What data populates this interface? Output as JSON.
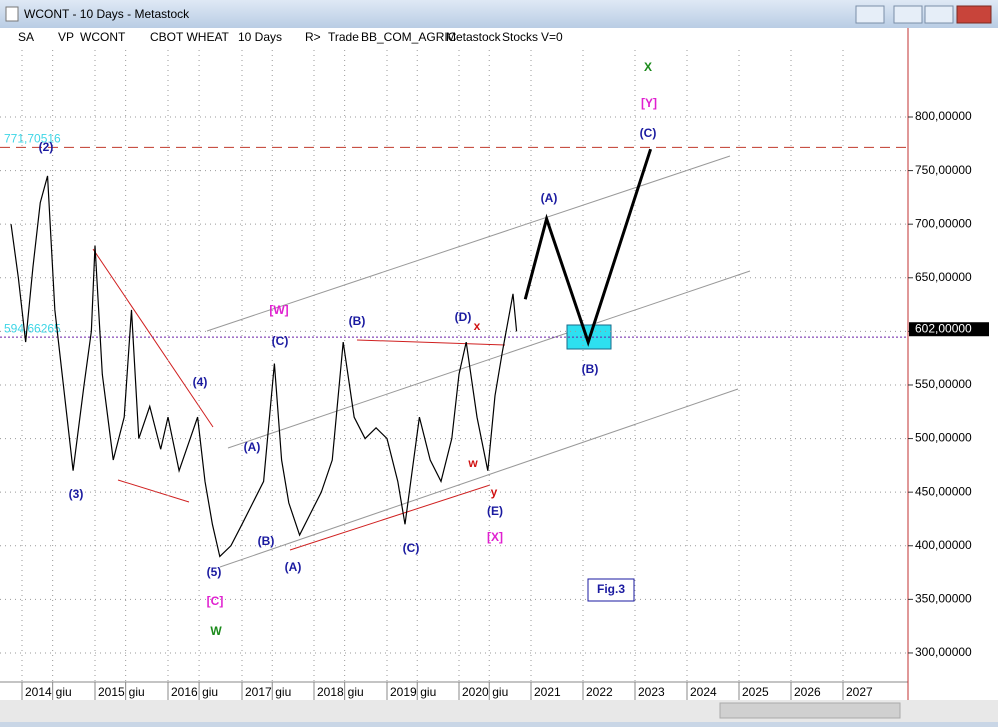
{
  "window": {
    "title": "WCONT - 10 Days - Metastock"
  },
  "toolbar": {
    "items": [
      "SA",
      "VP",
      "WCONT",
      "CBOT WHEAT",
      "10 Days",
      "R>",
      "Trade",
      "BB_COM_AGRIC",
      "Metastock",
      "Stocks",
      "V=0"
    ]
  },
  "chart_data": {
    "type": "line",
    "xlim": [
      2013.7,
      2028.25
    ],
    "ylim": [
      272.9,
      862.5
    ],
    "grid": true,
    "xticks": [
      2014,
      {
        "value": 2014.42,
        "label": "giu"
      },
      2015,
      {
        "value": 2015.42,
        "label": "giu"
      },
      2016,
      {
        "value": 2016.42,
        "label": "giu"
      },
      2017,
      {
        "value": 2017.42,
        "label": "giu"
      },
      2018,
      {
        "value": 2018.42,
        "label": "giu"
      },
      2019,
      {
        "value": 2019.42,
        "label": "giu"
      },
      2020,
      {
        "value": 2020.42,
        "label": "giu"
      },
      2021,
      2022,
      2023,
      2024,
      2025,
      2026,
      2027
    ],
    "yticks": [
      {
        "value": 300,
        "label": "300,00000"
      },
      {
        "value": 350,
        "label": "350,00000"
      },
      {
        "value": 400,
        "label": "400,00000"
      },
      {
        "value": 450,
        "label": "450,00000"
      },
      {
        "value": 500,
        "label": "500,00000"
      },
      {
        "value": 550,
        "label": "550,00000"
      },
      {
        "value": 600,
        "label": "600,00000"
      },
      {
        "value": 650,
        "label": "650,00000"
      },
      {
        "value": 700,
        "label": "700,00000"
      },
      {
        "value": 750,
        "label": "750,00000"
      },
      {
        "value": 800,
        "label": "800,00000"
      }
    ],
    "last_price": {
      "value": 602,
      "label": "602,00000"
    },
    "hlines": [
      {
        "value": 771.70516,
        "label": "771,70516",
        "color": "#c0392b"
      },
      {
        "value": 594.66265,
        "label": "594,66265",
        "color": "#6a1fa8"
      }
    ],
    "series": [
      {
        "color": "#000000",
        "x": [
          2013.85,
          2013.95,
          2014.05,
          2014.15,
          2014.25,
          2014.35,
          2014.45,
          2014.55,
          2014.7,
          2014.85,
          2014.95,
          2015.0,
          2015.1,
          2015.25,
          2015.4,
          2015.5,
          2015.6,
          2015.75,
          2015.9,
          2016.0,
          2016.15,
          2016.3,
          2016.4,
          2016.5,
          2016.6,
          2016.7,
          2016.85,
          2017.0,
          2017.15,
          2017.3,
          2017.45,
          2017.55,
          2017.65,
          2017.8,
          2017.95,
          2018.1,
          2018.25,
          2018.4,
          2018.55,
          2018.7,
          2018.85,
          2019.0,
          2019.15,
          2019.25,
          2019.35,
          2019.45,
          2019.6,
          2019.75,
          2019.9,
          2020.0,
          2020.1,
          2020.25,
          2020.4,
          2020.5,
          2020.6,
          2020.75,
          2020.8
        ],
        "values": [
          700,
          650,
          590,
          660,
          720,
          745,
          620,
          560,
          470,
          550,
          600,
          680,
          560,
          480,
          520,
          620,
          500,
          530,
          490,
          520,
          470,
          500,
          520,
          460,
          420,
          390,
          400,
          420,
          440,
          460,
          570,
          480,
          440,
          410,
          430,
          450,
          480,
          590,
          520,
          500,
          510,
          500,
          460,
          420,
          470,
          520,
          480,
          460,
          500,
          560,
          590,
          520,
          470,
          540,
          580,
          635,
          600
        ]
      },
      {
        "color": "#000000",
        "x": [
          2020.92,
          2021.3,
          2022.1,
          2023.3
        ],
        "values": [
          630,
          705,
          590,
          770
        ]
      }
    ],
    "annotations": [
      {
        "text": "(2)",
        "color": "#1a1aa0"
      },
      {
        "text": "(3)",
        "color": "#1a1aa0"
      },
      {
        "text": "(4)",
        "color": "#1a1aa0"
      },
      {
        "text": "(5)",
        "color": "#1a1aa0"
      },
      {
        "text": "[C]",
        "color": "#e020d0"
      },
      {
        "text": "W",
        "color": "#1a8a1a"
      },
      {
        "text": "[W]",
        "color": "#e020d0"
      },
      {
        "text": "(C)",
        "color": "#1a1aa0"
      },
      {
        "text": "(A)",
        "color": "#1a1aa0"
      },
      {
        "text": "(B)",
        "color": "#1a1aa0"
      },
      {
        "text": "(A)",
        "color": "#1a1aa0"
      },
      {
        "text": "(B)",
        "color": "#1a1aa0"
      },
      {
        "text": "(C)",
        "color": "#1a1aa0"
      },
      {
        "text": "(D)",
        "color": "#1a1aa0"
      },
      {
        "text": "x",
        "color": "#d01010"
      },
      {
        "text": "w",
        "color": "#d01010"
      },
      {
        "text": "y",
        "color": "#d01010"
      },
      {
        "text": "(E)",
        "color": "#1a1aa0"
      },
      {
        "text": "[X]",
        "color": "#e020d0"
      },
      {
        "text": "(A)",
        "color": "#1a1aa0"
      },
      {
        "text": "(B)",
        "color": "#1a1aa0"
      },
      {
        "text": "(C)",
        "color": "#1a1aa0"
      },
      {
        "text": "[Y]",
        "color": "#e020d0"
      },
      {
        "text": "X",
        "color": "#1a8a1a"
      },
      {
        "text": "Fig.3",
        "color": "#1a1aa0"
      }
    ]
  }
}
